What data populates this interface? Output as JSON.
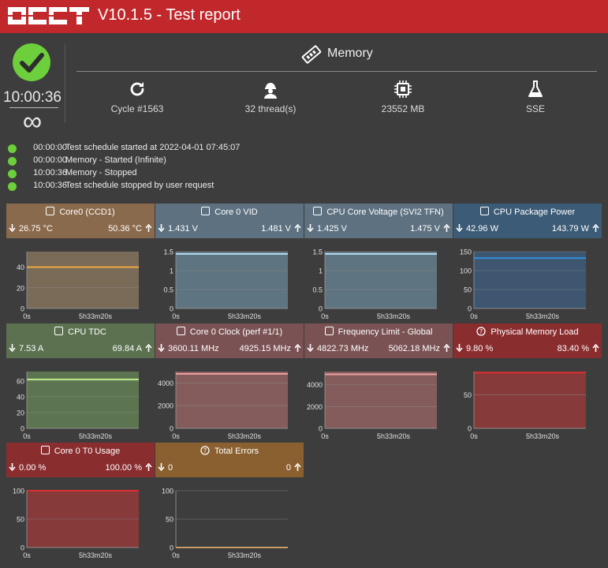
{
  "header": {
    "logo_text": "OCCT",
    "title": "V10.1.5 - Test report"
  },
  "status": {
    "elapsed": "10:00:36",
    "duration_symbol": "∞"
  },
  "test": {
    "name": "Memory",
    "cycle": "Cycle #1563",
    "threads": "32 thread(s)",
    "memory": "23552 MB",
    "instruction_set": "SSE"
  },
  "events": [
    {
      "time": "00:00:00",
      "message": "Test schedule started at 2022-04-01 07:45:07"
    },
    {
      "time": "00:00:00",
      "message": "Memory - Started (Infinite)"
    },
    {
      "time": "10:00:36",
      "message": "Memory - Stopped"
    },
    {
      "time": "10:00:36",
      "message": "Test schedule stopped by user request"
    }
  ],
  "colors": {
    "header": "#c0282b",
    "ok": "#6ccf3b"
  },
  "sensors": [
    {
      "title": "Core0 (CCD1)",
      "min": "26.75 °C",
      "max": "50.36 °C",
      "icon": "square",
      "header_color": "#8a6a4c",
      "plot_bg": "#7a6a58",
      "line_color": "#f0a848",
      "ticks": [
        "40",
        "20",
        "0"
      ],
      "tick_values": [
        40,
        20,
        0
      ],
      "ymax": 55,
      "level": 40,
      "x_start": "0s",
      "x_mid": "5h33m20s"
    },
    {
      "title": "Core 0 VID",
      "min": "1.431 V",
      "max": "1.481 V",
      "icon": "square",
      "header_color": "#5d7180",
      "plot_bg": "#5e7480",
      "line_color": "#b3ddf2",
      "ticks": [
        "1.5",
        "1",
        "0.5",
        "0"
      ],
      "tick_values": [
        1.5,
        1,
        0.5,
        0
      ],
      "ymax": 1.5,
      "level": 1.44,
      "x_start": "0s",
      "x_mid": "5h33m20s"
    },
    {
      "title": "CPU Core Voltage (SVI2 TFN)",
      "min": "1.425 V",
      "max": "1.475 V",
      "icon": "square",
      "header_color": "#5d7180",
      "plot_bg": "#5e7480",
      "line_color": "#b3ddf2",
      "ticks": [
        "1.5",
        "1",
        "0.5",
        "0"
      ],
      "tick_values": [
        1.5,
        1,
        0.5,
        0
      ],
      "ymax": 1.5,
      "level": 1.44,
      "x_start": "0s",
      "x_mid": "5h33m20s"
    },
    {
      "title": "CPU Package Power",
      "min": "42.96 W",
      "max": "143.79 W",
      "icon": "square",
      "header_color": "#3c5b76",
      "plot_bg": "#3e5670",
      "line_color": "#2f8fd8",
      "ticks": [
        "150",
        "100",
        "50",
        "0"
      ],
      "tick_values": [
        150,
        100,
        50,
        0
      ],
      "ymax": 150,
      "level": 133,
      "x_start": "0s",
      "x_mid": "5h33m20s"
    },
    {
      "title": "CPU TDC",
      "min": "7.53 A",
      "max": "69.84 A",
      "icon": "square",
      "header_color": "#5b7150",
      "plot_bg": "#5c7550",
      "line_color": "#b8e888",
      "ticks": [
        "60",
        "40",
        "20",
        "0"
      ],
      "tick_values": [
        60,
        40,
        20,
        0
      ],
      "ymax": 72,
      "level": 62,
      "x_start": "0s",
      "x_mid": "5h33m20s"
    },
    {
      "title": "Core 0 Clock (perf #1/1)",
      "min": "3600.11 MHz",
      "max": "4925.15 MHz",
      "icon": "square",
      "header_color": "#7a5253",
      "plot_bg": "#845c5c",
      "line_color": "#f0a0a0",
      "ticks": [
        "4000",
        "2000",
        "0"
      ],
      "tick_values": [
        4000,
        2000,
        0
      ],
      "ymax": 5000,
      "level": 4800,
      "x_start": "0s",
      "x_mid": "5h33m20s"
    },
    {
      "title": "Frequency Limit - Global",
      "min": "4822.73 MHz",
      "max": "5062.18 MHz",
      "icon": "square",
      "header_color": "#7a5253",
      "plot_bg": "#845c5c",
      "line_color": "#f0a0a0",
      "ticks": [
        "4000",
        "2000",
        "0"
      ],
      "tick_values": [
        4000,
        2000,
        0
      ],
      "ymax": 5200,
      "level": 4950,
      "x_start": "0s",
      "x_mid": "5h33m20s"
    },
    {
      "title": "Physical Memory Load",
      "min": "9.80 %",
      "max": "83.40 %",
      "icon": "question",
      "header_color": "#8a2d2f",
      "plot_bg": "#863a3a",
      "line_color": "#d83030",
      "ticks": [
        "50",
        "0"
      ],
      "tick_values": [
        50,
        0
      ],
      "ymax": 85,
      "level": 83.4,
      "x_start": "0s",
      "x_mid": "5h33m20s"
    },
    {
      "title": "Core 0 T0 Usage",
      "min": "0.00 %",
      "max": "100.00 %",
      "icon": "square",
      "header_color": "#8a2d2f",
      "plot_bg": "#863a3a",
      "line_color": "#d83030",
      "ticks": [
        "100",
        "50",
        "0"
      ],
      "tick_values": [
        100,
        50,
        0
      ],
      "ymax": 100,
      "level": 100,
      "x_start": "0s",
      "x_mid": "5h33m20s"
    },
    {
      "title": "Total Errors",
      "min": "0",
      "max": "0",
      "icon": "question",
      "header_color": "#8a6030",
      "plot_bg": "#3d3d3d",
      "line_color": "#e59a45",
      "ticks": [
        "100",
        "50",
        "0"
      ],
      "tick_values": [
        100,
        50,
        0
      ],
      "ymax": 100,
      "level": 0,
      "x_start": "0s",
      "x_mid": "5h33m20s"
    }
  ]
}
